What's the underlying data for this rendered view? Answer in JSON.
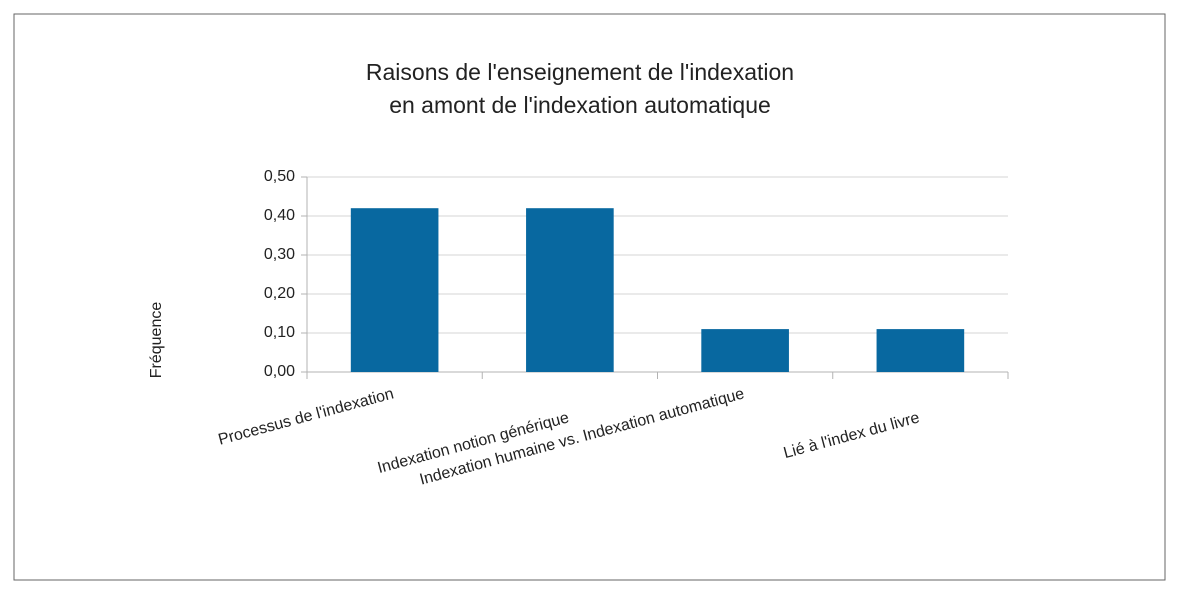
{
  "chart_data": {
    "type": "bar",
    "title": [
      "Raisons de l'enseignement de l'indexation",
      "en amont de l'indexation automatique"
    ],
    "y_label": "Fréquence",
    "categories": [
      "Processus de l'indexation",
      "Indexation notion générique",
      "Indexation humaine vs. Indexation automatique",
      "Lié à l'index du livre"
    ],
    "values": [
      0.42,
      0.42,
      0.11,
      0.11
    ],
    "color": "#0868a0",
    "ylim": [
      0,
      0.5
    ],
    "yticks": [
      {
        "value": 0,
        "label": "0,00"
      },
      {
        "value": 0.1,
        "label": "0,10"
      },
      {
        "value": 0.2,
        "label": "0,20"
      },
      {
        "value": 0.3,
        "label": "0,30"
      },
      {
        "value": 0.4,
        "label": "0,40"
      },
      {
        "value": 0.5,
        "label": "0,50"
      }
    ],
    "grid": true
  }
}
